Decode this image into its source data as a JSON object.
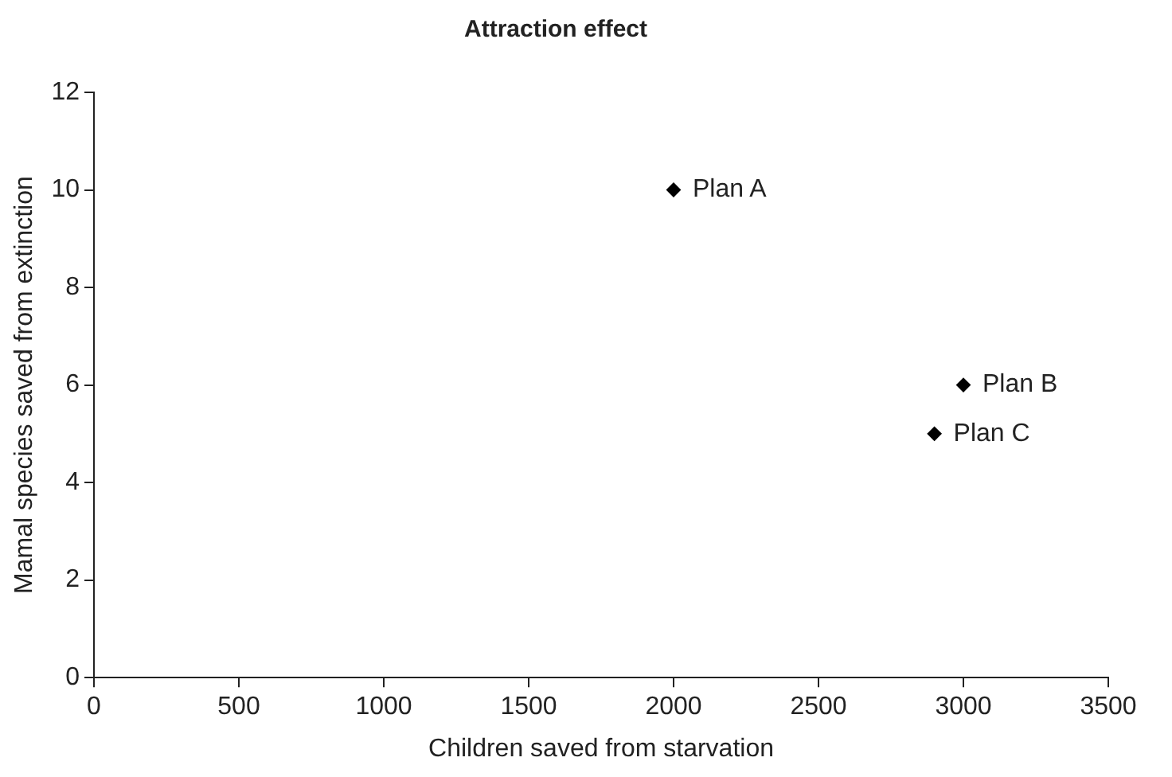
{
  "chart_data": {
    "type": "scatter",
    "title": "Attraction effect",
    "xlabel": "Children saved from starvation",
    "ylabel": "Mamal species saved from extinction",
    "x": [
      2000,
      3000,
      2900
    ],
    "values": [
      10,
      6,
      5
    ],
    "color": "#000000",
    "marker": "diamond",
    "xlim": [
      0,
      3500
    ],
    "xticks": [
      0,
      500,
      1000,
      1500,
      2000,
      2500,
      3000,
      3500
    ],
    "ylim": [
      0,
      12
    ],
    "yticks": [
      0,
      2,
      4,
      6,
      8,
      10,
      12
    ],
    "grid": false,
    "legend": false,
    "annotations": [
      {
        "text": "Plan A",
        "x": 2000,
        "y": 10
      },
      {
        "text": "Plan B",
        "x": 3000,
        "y": 6
      },
      {
        "text": "Plan C",
        "x": 2900,
        "y": 5
      }
    ]
  }
}
